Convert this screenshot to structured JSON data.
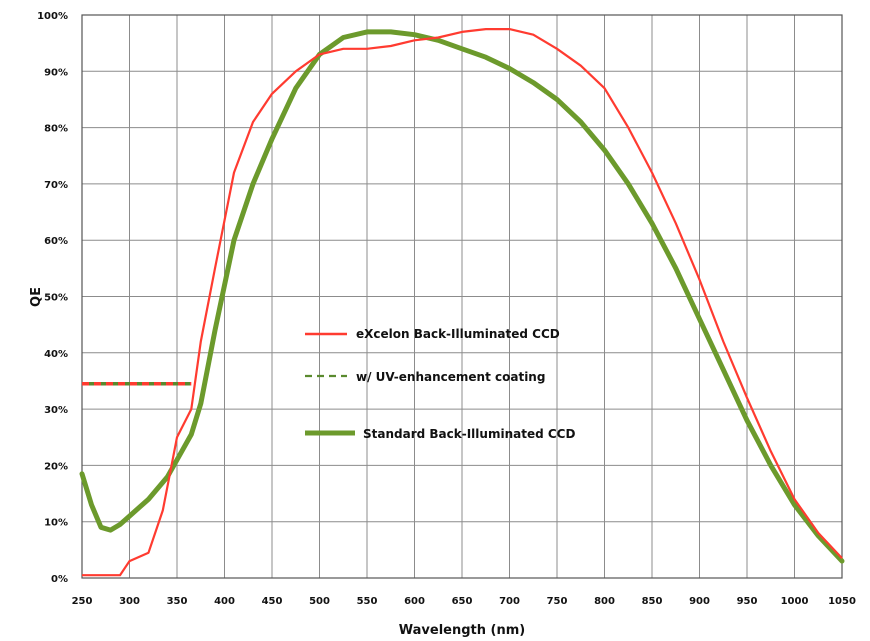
{
  "chart_data": {
    "type": "line",
    "xlabel": "Wavelength (nm)",
    "ylabel": "QE",
    "xlim": [
      250,
      1050
    ],
    "ylim": [
      0,
      100
    ],
    "x_ticks": [
      250,
      300,
      350,
      400,
      450,
      500,
      550,
      600,
      650,
      700,
      750,
      800,
      850,
      900,
      950,
      1000,
      1050
    ],
    "x_tick_labels": [
      "250",
      "300",
      "350",
      "400",
      "450",
      "500",
      "550",
      "600",
      "650",
      "700",
      "750",
      "800",
      "850",
      "900",
      "950",
      "1000",
      "1050"
    ],
    "y_ticks": [
      0,
      10,
      20,
      30,
      40,
      50,
      60,
      70,
      80,
      90,
      100
    ],
    "y_tick_labels": [
      "0%",
      "10%",
      "20%",
      "30%",
      "40%",
      "50%",
      "60%",
      "70%",
      "80%",
      "90%",
      "100%"
    ],
    "grid": true,
    "legend_position": "center-left",
    "series": [
      {
        "name": "eXcelon Back-Illuminated CCD",
        "color": "#ff3b30",
        "style": "solid",
        "x": [
          250,
          290,
          300,
          320,
          335,
          350,
          365,
          375,
          390,
          410,
          430,
          450,
          475,
          500,
          525,
          550,
          575,
          600,
          625,
          650,
          675,
          700,
          725,
          750,
          775,
          800,
          825,
          850,
          875,
          900,
          925,
          950,
          975,
          1000,
          1025,
          1050
        ],
        "y": [
          0.5,
          0.5,
          3,
          4.5,
          12,
          25,
          30,
          42,
          55,
          72,
          81,
          86,
          90,
          93,
          94,
          94,
          94.5,
          95.5,
          96,
          97,
          97.5,
          97.5,
          96.5,
          94,
          91,
          87,
          80,
          72,
          63,
          53,
          42,
          32,
          22.5,
          14,
          8,
          3.5
        ]
      },
      {
        "name": "w/ UV-enhancement coating",
        "color": "#ff3b30",
        "color2": "#5a8a2e",
        "style": "dashed",
        "x": [
          250,
          365
        ],
        "y": [
          34.5,
          34.5
        ]
      },
      {
        "name": "Standard Back-Illuminated CCD",
        "color": "#6c9a2c",
        "style": "solid",
        "x": [
          250,
          260,
          270,
          280,
          290,
          300,
          320,
          340,
          355,
          365,
          375,
          390,
          410,
          430,
          450,
          475,
          500,
          525,
          550,
          575,
          600,
          625,
          650,
          675,
          700,
          725,
          750,
          775,
          800,
          825,
          850,
          875,
          900,
          925,
          950,
          975,
          1000,
          1025,
          1050
        ],
        "y": [
          18.5,
          13,
          9,
          8.5,
          9.5,
          11,
          14,
          18,
          22.5,
          25.5,
          31,
          44,
          60,
          70,
          78,
          87,
          93,
          96,
          97,
          97,
          96.5,
          95.5,
          94,
          92.5,
          90.5,
          88,
          85,
          81,
          76,
          70,
          63,
          55,
          46,
          37,
          28,
          20,
          13,
          7.5,
          3
        ]
      }
    ]
  }
}
